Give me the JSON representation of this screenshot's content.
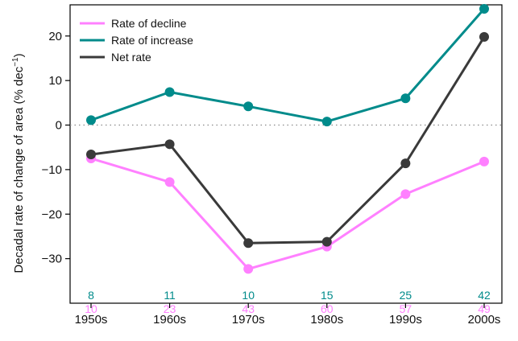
{
  "chart_data": {
    "type": "line",
    "categories": [
      "1950s",
      "1960s",
      "1970s",
      "1980s",
      "1990s",
      "2000s"
    ],
    "ylabel_main": "Decadal rate of change of area (% dec",
    "ylabel_sup": "−1",
    "ylabel_end": ")",
    "ylim": [
      -40,
      27
    ],
    "yticks": [
      -30,
      -20,
      -10,
      0,
      10,
      20
    ],
    "ytick_labels": [
      "−30",
      "−20",
      "−10",
      "0",
      "10",
      "20"
    ],
    "zero_line": true,
    "grid": false,
    "legend_position": "top-left",
    "series": [
      {
        "name": "Rate of decline",
        "color": "#ff80ff",
        "values": [
          -7.5,
          -12.8,
          -32.3,
          -27.3,
          -15.5,
          -8.2
        ]
      },
      {
        "name": "Rate of increase",
        "color": "#008b8b",
        "values": [
          1.1,
          7.4,
          4.2,
          0.8,
          6.0,
          26.1
        ]
      },
      {
        "name": "Net rate",
        "color": "#3a3a3a",
        "values": [
          -6.6,
          -4.3,
          -26.5,
          -26.2,
          -8.6,
          19.8
        ]
      }
    ],
    "counts": {
      "increase": {
        "color": "#008b8b",
        "values": [
          "8",
          "11",
          "10",
          "15",
          "25",
          "42"
        ]
      },
      "decline": {
        "color": "#ff80ff",
        "values": [
          "10",
          "23",
          "43",
          "60",
          "57",
          "49"
        ]
      }
    }
  }
}
